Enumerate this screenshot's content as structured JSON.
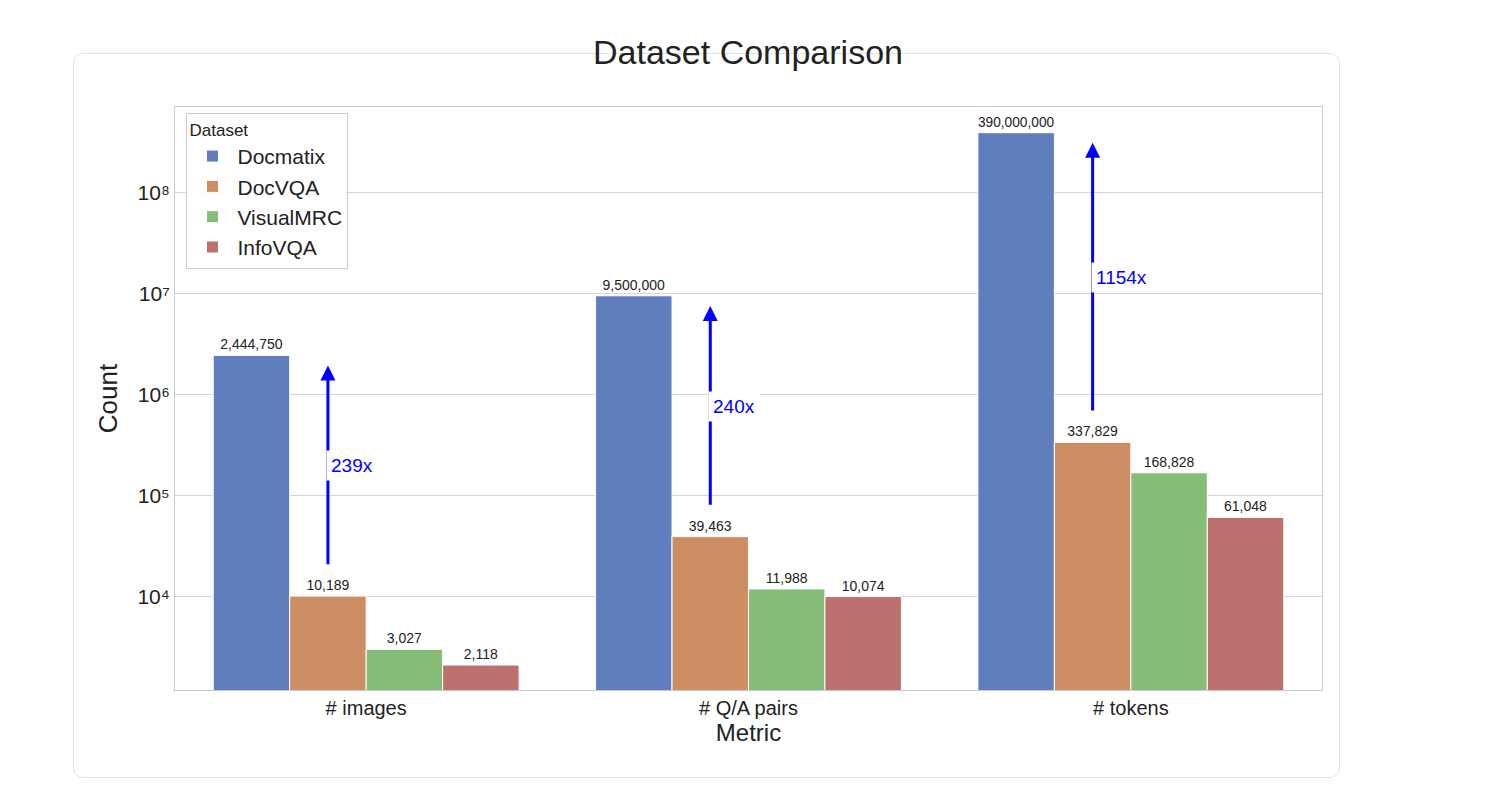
{
  "chart_data": {
    "type": "bar",
    "title": "Dataset Comparison",
    "x_label": "Metric",
    "y_label": "Count",
    "categories": [
      "# images",
      "# Q/A pairs",
      "# tokens"
    ],
    "series": [
      {
        "name": "Docmatix",
        "color": "#607dbd",
        "values": [
          2444750,
          9500000,
          390000000
        ],
        "value_labels": [
          "2,444,750",
          "9,500,000",
          "390,000,000"
        ]
      },
      {
        "name": "DocVQA",
        "color": "#cd8e63",
        "values": [
          10189,
          39463,
          337829
        ],
        "value_labels": [
          "10,189",
          "39,463",
          "337,829"
        ]
      },
      {
        "name": "VisualMRC",
        "color": "#86bd79",
        "values": [
          3027,
          11988,
          168828
        ],
        "value_labels": [
          "3,027",
          "11,988",
          "168,828"
        ]
      },
      {
        "name": "InfoVQA",
        "color": "#bd716f",
        "values": [
          2118,
          10074,
          61048
        ],
        "value_labels": [
          "2,118",
          "10,074",
          "61,048"
        ]
      }
    ],
    "legend_title": "Dataset",
    "legend": "upper left",
    "log": "y",
    "ylim": [
      1200,
      700000000
    ],
    "yticks": [
      {
        "value": 10000,
        "label": "10⁴"
      },
      {
        "value": 100000,
        "label": "10⁵"
      },
      {
        "value": 1000000,
        "label": "10⁶"
      },
      {
        "value": 10000000,
        "label": "10⁷"
      },
      {
        "value": 100000000,
        "label": "10⁸"
      }
    ],
    "grid": true,
    "data_labels": true,
    "annotations": [
      {
        "text": "239x",
        "category": "# images",
        "from": "DocVQA",
        "to": "Docmatix"
      },
      {
        "text": "240x",
        "category": "# Q/A pairs",
        "from": "DocVQA",
        "to": "Docmatix"
      },
      {
        "text": "1154x",
        "category": "# tokens",
        "from": "DocVQA",
        "to": "Docmatix"
      }
    ]
  }
}
